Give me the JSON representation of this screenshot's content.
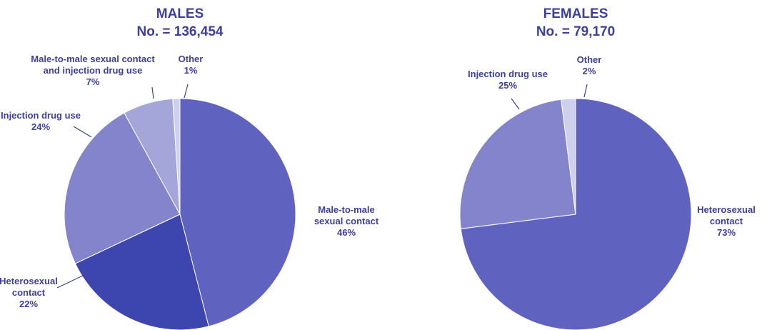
{
  "text_color": "#3d3f9e",
  "chart_data": [
    {
      "type": "pie",
      "title": "MALES",
      "subtitle": "No. = 136,454",
      "start": "top",
      "direction": "clockwise",
      "slices": [
        {
          "label_lines": [
            "Male-to-male",
            "sexual contact"
          ],
          "pct_label": "46%",
          "value": 46,
          "color": "#5f62bf"
        },
        {
          "label_lines": [
            "Heterosexual",
            "contact"
          ],
          "pct_label": "22%",
          "value": 22,
          "color": "#3d46ae"
        },
        {
          "label_lines": [
            "Injection drug use"
          ],
          "pct_label": "24%",
          "value": 24,
          "color": "#8384cb"
        },
        {
          "label_lines": [
            "Male-to-male sexual contact",
            "and injection drug use"
          ],
          "pct_label": "7%",
          "value": 7,
          "color": "#a4a5d9"
        },
        {
          "label_lines": [
            "Other"
          ],
          "pct_label": "1%",
          "value": 1,
          "color": "#cfd0ed"
        }
      ]
    },
    {
      "type": "pie",
      "title": "FEMALES",
      "subtitle": "No. = 79,170",
      "start": "top",
      "direction": "clockwise",
      "slices": [
        {
          "label_lines": [
            "Heterosexual",
            "contact"
          ],
          "pct_label": "73%",
          "value": 73,
          "color": "#5f62bf"
        },
        {
          "label_lines": [
            "Injection drug use"
          ],
          "pct_label": "25%",
          "value": 25,
          "color": "#8384cb"
        },
        {
          "label_lines": [
            "Other"
          ],
          "pct_label": "2%",
          "value": 2,
          "color": "#cfd0ed"
        }
      ]
    }
  ]
}
